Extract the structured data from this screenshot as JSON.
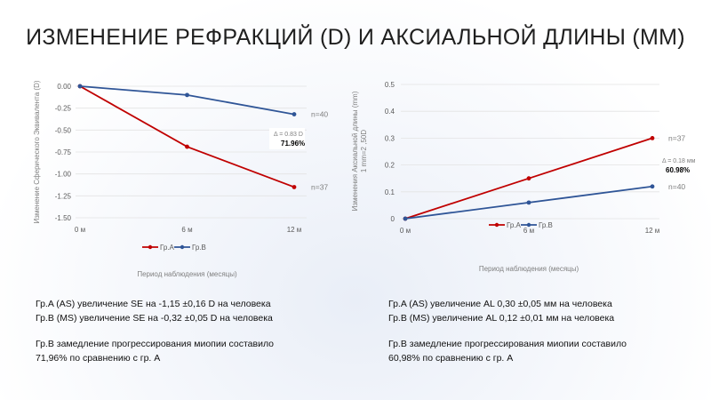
{
  "title": "ИЗМЕНЕНИЕ РЕФРАКЦИЙ (D) И АКСИАЛЬНОЙ ДЛИНЫ (ММ)",
  "colors": {
    "groupA": "#c00000",
    "groupB": "#2f5597"
  },
  "chart_data": [
    {
      "type": "line",
      "categories": [
        "0 м",
        "6 м",
        "12 м"
      ],
      "series": [
        {
          "name": "Гр.A",
          "values": [
            0,
            -0.69,
            -1.15
          ],
          "n_label": "n=37"
        },
        {
          "name": "Гр.B",
          "values": [
            0,
            -0.1,
            -0.32
          ],
          "n_label": "n=40"
        }
      ],
      "ylabel": "Изменение Сферического Эквивалента (D)",
      "xlabel": "Период наблюдения (месяцы)",
      "ylim": [
        -1.5,
        0
      ],
      "yticks": [
        "0.00",
        "-0.25",
        "-0.50",
        "-0.75",
        "-1.00",
        "-1.25",
        "-1.50"
      ],
      "annotation": {
        "delta": "Δ = 0.83 D",
        "percent": "71.96%"
      },
      "legend": "bottom"
    },
    {
      "type": "line",
      "categories": [
        "0 м",
        "6 м",
        "12 м"
      ],
      "series": [
        {
          "name": "Гр.A",
          "values": [
            0,
            0.15,
            0.3
          ],
          "n_label": "n=37"
        },
        {
          "name": "Гр.B",
          "values": [
            0,
            0.06,
            0.12
          ],
          "n_label": "n=40"
        }
      ],
      "ylabel": "Изменения Аксиальной длины (mm)",
      "ylabel2": "1 mm=2 ,50D",
      "xlabel": "Период наблюдения (месяцы)",
      "ylim": [
        0,
        0.5
      ],
      "yticks": [
        "0.5",
        "0.4",
        "0.3",
        "0.2",
        "0.1",
        "0"
      ],
      "annotation": {
        "delta": "Δ = 0.18 мм",
        "percent": "60.98%"
      },
      "legend": "bottom"
    }
  ],
  "left_text": {
    "line1": "Гр.A (AS) увеличение SE на -1,15 ±0,16 D на человека",
    "line2": "Гр.B (MS) увеличение SE на -0,32 ±0,05 D на человека",
    "line3": "Гр.B замедление прогрессирования миопии составило",
    "line4": "71,96% по сравнению с гр. А"
  },
  "right_text": {
    "line1": "Гр.A (AS) увеличение AL 0,30 ±0,05 мм на человека",
    "line2": "Гр.B (MS) увеличение AL 0,12 ±0,01 мм на человека",
    "line3": "Гр.B замедление прогрессирования миопии составило",
    "line4": "60,98% по сравнению с гр. А"
  }
}
